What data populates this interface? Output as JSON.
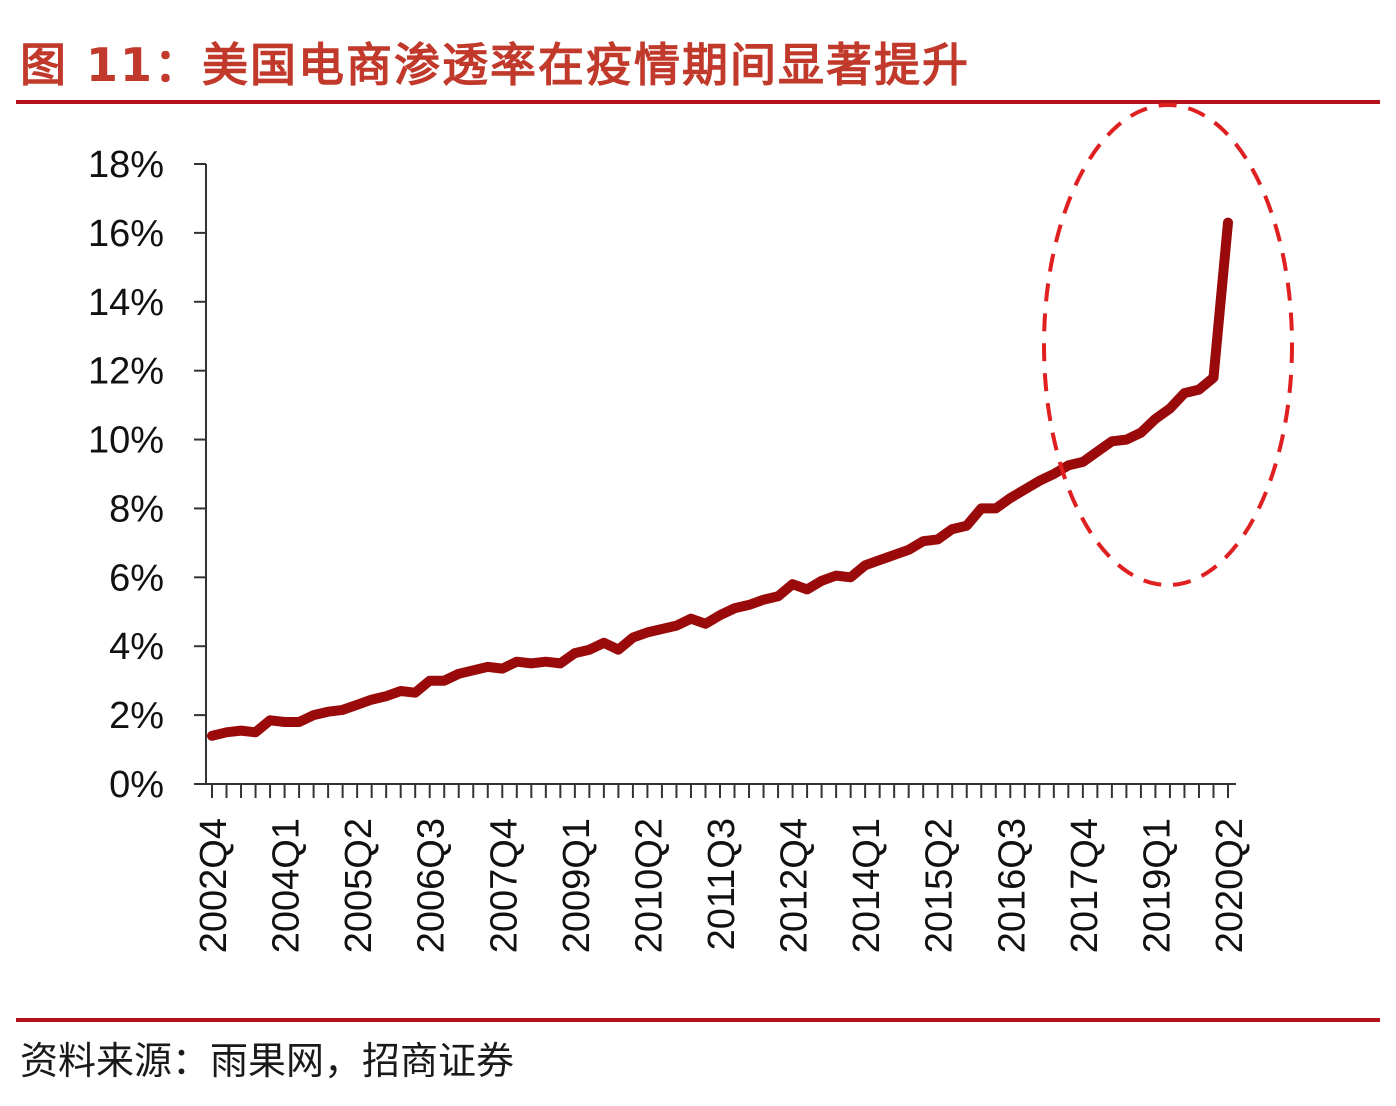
{
  "header": {
    "title": "图 11：美国电商渗透率在疫情期间显著提升"
  },
  "footer": {
    "source": "资料来源：雨果网，招商证券"
  },
  "colors": {
    "line": "#9b0a0a",
    "highlight": "#e02020",
    "rule": "#b5121b",
    "title": "#c0392b"
  },
  "chart_data": {
    "type": "line",
    "title": "",
    "xlabel": "",
    "ylabel": "",
    "ylim": [
      0,
      18
    ],
    "y_unit": "%",
    "y_ticks": [
      "0%",
      "2%",
      "4%",
      "6%",
      "8%",
      "10%",
      "12%",
      "14%",
      "16%",
      "18%"
    ],
    "x_tick_labels": [
      "2002Q4",
      "2004Q1",
      "2005Q2",
      "2006Q3",
      "2007Q4",
      "2009Q1",
      "2010Q2",
      "2011Q3",
      "2012Q4",
      "2014Q1",
      "2015Q2",
      "2016Q3",
      "2017Q4",
      "2019Q1",
      "2020Q2"
    ],
    "grid": false,
    "legend": "none",
    "annotation": "dashed ellipse highlighting 2017Q4–2020Q2",
    "x": [
      "2002Q4",
      "2003Q1",
      "2003Q2",
      "2003Q3",
      "2003Q4",
      "2004Q1",
      "2004Q2",
      "2004Q3",
      "2004Q4",
      "2005Q1",
      "2005Q2",
      "2005Q3",
      "2005Q4",
      "2006Q1",
      "2006Q2",
      "2006Q3",
      "2006Q4",
      "2007Q1",
      "2007Q2",
      "2007Q3",
      "2007Q4",
      "2008Q1",
      "2008Q2",
      "2008Q3",
      "2008Q4",
      "2009Q1",
      "2009Q2",
      "2009Q3",
      "2009Q4",
      "2010Q1",
      "2010Q2",
      "2010Q3",
      "2010Q4",
      "2011Q1",
      "2011Q2",
      "2011Q3",
      "2011Q4",
      "2012Q1",
      "2012Q2",
      "2012Q3",
      "2012Q4",
      "2013Q1",
      "2013Q2",
      "2013Q3",
      "2013Q4",
      "2014Q1",
      "2014Q2",
      "2014Q3",
      "2014Q4",
      "2015Q1",
      "2015Q2",
      "2015Q3",
      "2015Q4",
      "2016Q1",
      "2016Q2",
      "2016Q3",
      "2016Q4",
      "2017Q1",
      "2017Q2",
      "2017Q3",
      "2017Q4",
      "2018Q1",
      "2018Q2",
      "2018Q3",
      "2018Q4",
      "2019Q1",
      "2019Q2",
      "2019Q3",
      "2019Q4",
      "2020Q1",
      "2020Q2"
    ],
    "series": [
      {
        "values": [
          1.4,
          1.5,
          1.55,
          1.5,
          1.85,
          1.8,
          1.8,
          2.0,
          2.1,
          2.15,
          2.3,
          2.45,
          2.55,
          2.7,
          2.65,
          3.0,
          3.0,
          3.2,
          3.3,
          3.4,
          3.35,
          3.55,
          3.5,
          3.55,
          3.5,
          3.8,
          3.9,
          4.1,
          3.9,
          4.25,
          4.4,
          4.5,
          4.6,
          4.8,
          4.65,
          4.9,
          5.1,
          5.2,
          5.35,
          5.45,
          5.8,
          5.65,
          5.9,
          6.05,
          6.0,
          6.35,
          6.5,
          6.65,
          6.8,
          7.05,
          7.1,
          7.4,
          7.5,
          8.0,
          8.0,
          8.3,
          8.55,
          8.8,
          9.0,
          9.25,
          9.35,
          9.65,
          9.95,
          10.0,
          10.2,
          10.6,
          10.9,
          11.35,
          11.45,
          11.8,
          16.3
        ]
      }
    ]
  }
}
